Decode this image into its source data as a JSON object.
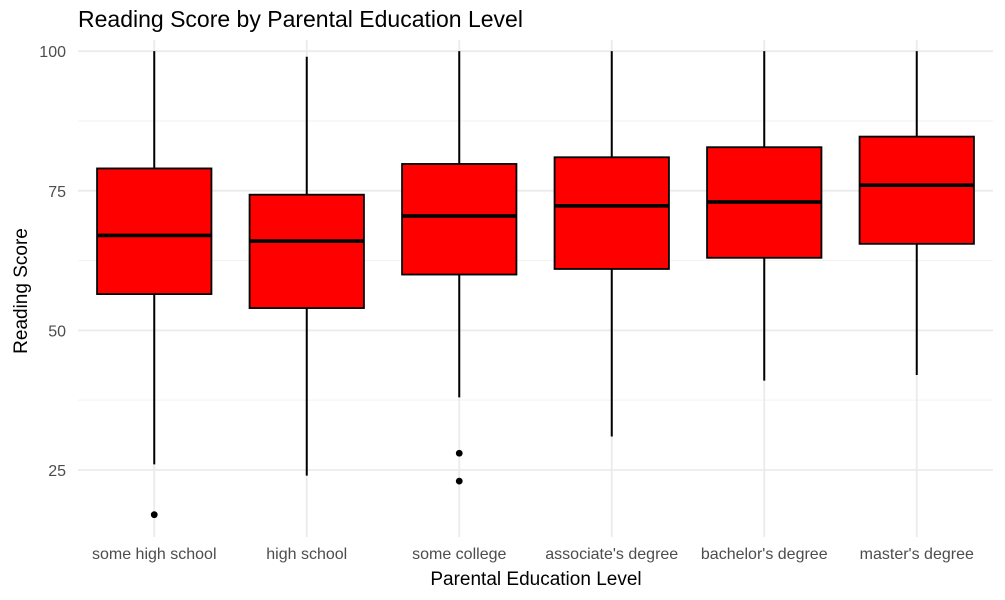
{
  "chart_data": {
    "type": "box",
    "title": "Reading Score by Parental Education Level",
    "xlabel": "Parental Education Level",
    "ylabel": "Reading Score",
    "ylim": [
      13,
      102
    ],
    "yticks": [
      25,
      50,
      75,
      100
    ],
    "grid": true,
    "legend": "none",
    "box_fill": "#ff0000",
    "box_stroke": "#000000",
    "categories": [
      "some high school",
      "high school",
      "some college",
      "associate's degree",
      "bachelor's degree",
      "master's degree"
    ],
    "boxes": [
      {
        "category": "some high school",
        "min": 26,
        "q1": 56.5,
        "median": 67,
        "q3": 79,
        "max": 100,
        "outliers": [
          17
        ]
      },
      {
        "category": "high school",
        "min": 24,
        "q1": 54,
        "median": 66,
        "q3": 74.3,
        "max": 99,
        "outliers": []
      },
      {
        "category": "some college",
        "min": 38,
        "q1": 60,
        "median": 70.5,
        "q3": 79.8,
        "max": 100,
        "outliers": [
          28,
          23
        ]
      },
      {
        "category": "associate's degree",
        "min": 31,
        "q1": 61,
        "median": 72.3,
        "q3": 81,
        "max": 100,
        "outliers": []
      },
      {
        "category": "bachelor's degree",
        "min": 41,
        "q1": 63,
        "median": 73,
        "q3": 82.8,
        "max": 100,
        "outliers": []
      },
      {
        "category": "master's degree",
        "min": 42,
        "q1": 65.5,
        "median": 76,
        "q3": 84.7,
        "max": 100,
        "outliers": []
      }
    ]
  }
}
